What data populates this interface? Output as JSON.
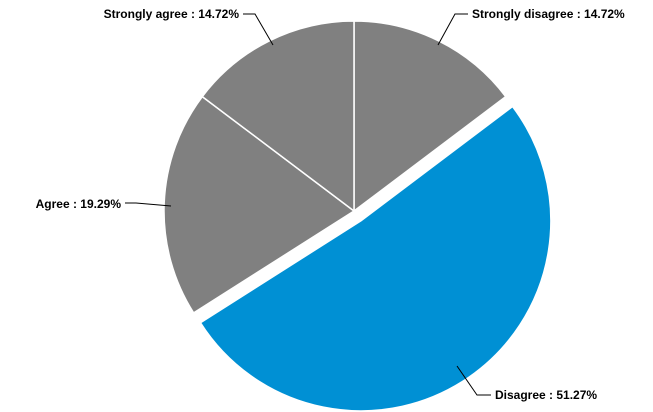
{
  "chart_data": {
    "type": "pie",
    "title": "",
    "start_angle_deg": 0,
    "direction": "clockwise",
    "slices": [
      {
        "label": "Strongly disagree",
        "value": 14.72,
        "value_text": "14.72%",
        "color": "#808080",
        "exploded": false
      },
      {
        "label": "Disagree",
        "value": 51.27,
        "value_text": "51.27%",
        "color": "#0090D4",
        "exploded": true
      },
      {
        "label": "Agree",
        "value": 19.29,
        "value_text": "19.29%",
        "color": "#808080",
        "exploded": false
      },
      {
        "label": "Strongly agree",
        "value": 14.72,
        "value_text": "14.72%",
        "color": "#808080",
        "exploded": false
      }
    ],
    "label_separator": " : ",
    "legend": "none"
  }
}
